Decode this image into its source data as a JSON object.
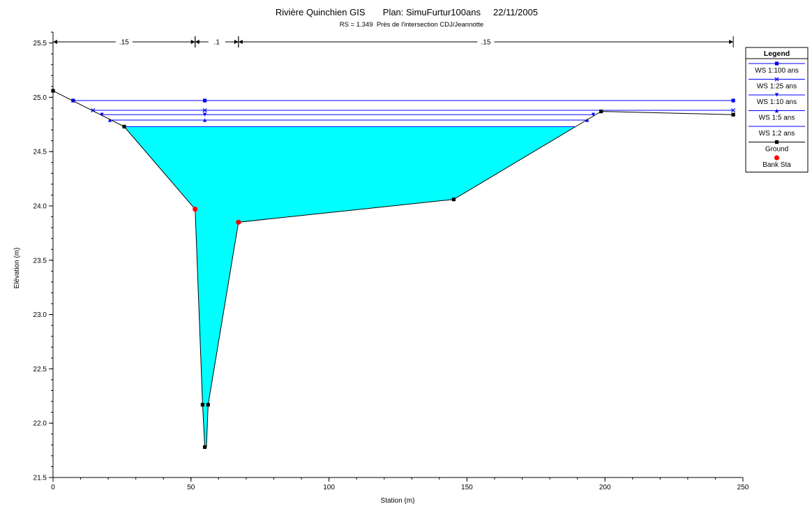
{
  "chart_data": {
    "type": "line",
    "title": "Rivière Quinchien GIS       Plan: SimuFurtur100ans     22/11/2005",
    "subtitle": "RS = 1.349  Près de l'intersection CDJ/Jeannotte",
    "xlabel": "Station (m)",
    "ylabel": "Elévation (m)",
    "xlim": [
      0,
      250
    ],
    "ylim": [
      21.5,
      25.6
    ],
    "x_ticks": [
      0,
      50,
      100,
      150,
      200,
      250
    ],
    "x_tick_labels": [
      "0",
      "50",
      "100",
      "150",
      "200",
      "250"
    ],
    "y_ticks": [
      21.5,
      22.0,
      22.5,
      23.0,
      23.5,
      24.0,
      24.5,
      25.0,
      25.5
    ],
    "y_tick_labels": [
      "21.5",
      "22.0",
      "22.5",
      "23.0",
      "23.5",
      "24.0",
      "24.5",
      "25.0",
      "25.5"
    ],
    "manning_n": [
      {
        "x0": 0,
        "x1": 51.5,
        "label": ".15"
      },
      {
        "x0": 51.5,
        "x1": 67.2,
        "label": ".1"
      },
      {
        "x0": 67.2,
        "x1": 246.5,
        "label": ".15"
      }
    ],
    "ground": {
      "name": "Ground",
      "color": "#000000",
      "x": [
        0,
        25.8,
        51.5,
        54.2,
        55.0,
        55.6,
        56.2,
        67.2,
        145.2,
        198.6,
        246.5
      ],
      "y": [
        25.06,
        24.73,
        23.97,
        22.17,
        21.78,
        21.78,
        22.17,
        23.85,
        24.06,
        24.87,
        24.84
      ],
      "marker_x": [
        0,
        25.8,
        54.2,
        55.0,
        56.2,
        145.2,
        198.6,
        246.5
      ],
      "marker_y": [
        25.06,
        24.73,
        22.17,
        21.78,
        22.17,
        24.06,
        24.87,
        24.84
      ]
    },
    "bank_stations": {
      "name": "Bank Sta",
      "color": "#ff0000",
      "x": [
        51.5,
        67.2
      ],
      "y": [
        23.97,
        23.85
      ]
    },
    "water_fill_color": "#00ffff",
    "water_fill_level": 24.73,
    "series": [
      {
        "name": "WS 1:100 ans",
        "color": "#0000ff",
        "marker": "square",
        "elevation": 24.97,
        "x_start": 7.3,
        "x_end": 246.5,
        "marker_x": [
          7.3,
          55.0,
          246.5
        ]
      },
      {
        "name": "WS 1:25 ans",
        "color": "#0000ff",
        "marker": "x",
        "elevation": 24.88,
        "x_start": 14.5,
        "x_end": 246.5,
        "marker_x": [
          14.5,
          55.0,
          246.5
        ]
      },
      {
        "name": "WS 1:10 ans",
        "color": "#0000ff",
        "marker": "triangle-down",
        "elevation": 24.84,
        "x_start": 17.7,
        "x_end": 195.8,
        "marker_x": [
          17.7,
          55.0,
          195.8
        ]
      },
      {
        "name": "WS 1:5 ans",
        "color": "#0000ff",
        "marker": "triangle-up",
        "elevation": 24.79,
        "x_start": 20.6,
        "x_end": 193.6,
        "marker_x": [
          20.6,
          55.0,
          193.6
        ]
      },
      {
        "name": "WS 1:2 ans",
        "color": "#0000ff",
        "marker": "none",
        "elevation": 24.73,
        "x_start": 25.8,
        "x_end": 189.0,
        "marker_x": []
      }
    ],
    "legend": {
      "title": "Legend",
      "placement": "right",
      "entries": [
        {
          "label": "WS 1:100 ans",
          "color": "#0000ff",
          "marker": "square",
          "line": true
        },
        {
          "label": "WS 1:25 ans",
          "color": "#0000ff",
          "marker": "x",
          "line": true
        },
        {
          "label": "WS 1:10 ans",
          "color": "#0000ff",
          "marker": "triangle-down",
          "line": true
        },
        {
          "label": "WS 1:5 ans",
          "color": "#0000ff",
          "marker": "triangle-up",
          "line": true
        },
        {
          "label": "WS 1:2 ans",
          "color": "#0000ff",
          "marker": "none",
          "line": true
        },
        {
          "label": "Ground",
          "color": "#000000",
          "marker": "square",
          "line": true
        },
        {
          "label": "Bank Sta",
          "color": "#ff0000",
          "marker": "circle",
          "line": false
        }
      ]
    },
    "grid": false
  }
}
